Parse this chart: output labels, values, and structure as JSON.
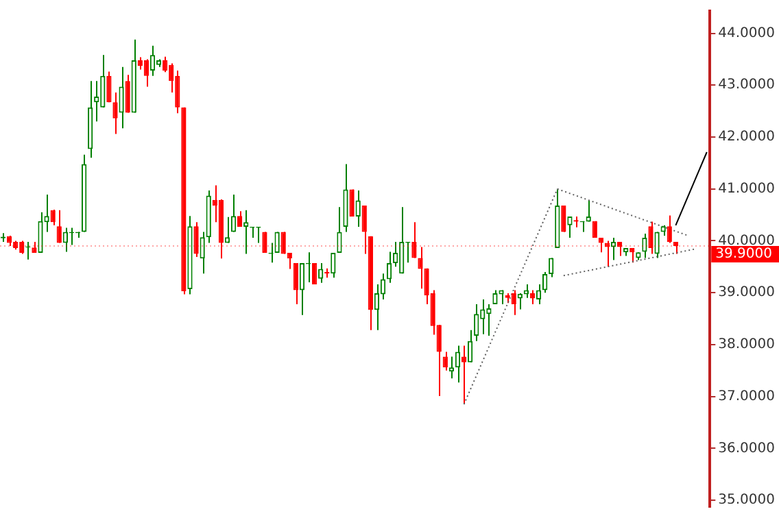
{
  "chart_data": {
    "type": "candlestick",
    "categories": [
      null,
      null,
      null,
      null,
      null,
      null,
      null,
      null,
      null,
      null,
      null,
      null,
      null,
      null,
      null,
      null,
      null,
      null,
      null,
      null,
      null,
      null,
      null,
      null,
      null,
      null,
      null,
      null,
      null,
      null,
      null,
      null,
      null,
      null,
      null,
      null,
      null,
      null,
      null,
      null,
      null,
      null,
      null,
      null,
      null,
      null,
      null,
      null,
      null,
      null,
      null,
      null,
      null,
      null,
      null,
      null,
      null,
      null,
      null,
      null,
      null,
      null,
      null,
      null,
      null,
      null,
      null,
      null,
      null,
      null,
      null,
      null,
      null,
      null,
      null,
      null,
      null,
      null,
      null,
      null,
      null,
      null,
      null,
      null,
      null,
      null,
      null,
      null,
      null,
      null,
      null,
      null,
      null,
      null,
      null,
      null,
      null,
      null,
      null,
      null,
      null,
      null,
      null,
      null,
      null,
      null,
      null,
      null,
      null,
      null,
      null,
      null,
      null,
      null
    ],
    "ohlc": [
      [
        40.05,
        40.15,
        39.98,
        40.08
      ],
      [
        40.09,
        40.1,
        39.9,
        39.96
      ],
      [
        39.98,
        40.0,
        39.83,
        39.86
      ],
      [
        39.98,
        40.0,
        39.75,
        39.77
      ],
      [
        39.87,
        39.98,
        39.64,
        39.89
      ],
      [
        39.87,
        39.98,
        39.77,
        39.77
      ],
      [
        39.77,
        40.55,
        39.77,
        40.38
      ],
      [
        40.36,
        40.89,
        40.17,
        40.48
      ],
      [
        40.59,
        40.6,
        40.3,
        40.36
      ],
      [
        40.28,
        40.59,
        39.96,
        39.96
      ],
      [
        39.96,
        40.25,
        39.79,
        40.17
      ],
      [
        40.15,
        40.25,
        39.92,
        40.17
      ],
      [
        40.15,
        40.17,
        40.06,
        40.17
      ],
      [
        40.17,
        41.66,
        40.17,
        41.48
      ],
      [
        41.77,
        43.08,
        41.6,
        42.57
      ],
      [
        42.67,
        43.08,
        42.3,
        42.78
      ],
      [
        42.57,
        43.58,
        42.57,
        43.18
      ],
      [
        43.18,
        43.26,
        42.67,
        42.67
      ],
      [
        42.67,
        42.86,
        42.06,
        42.36
      ],
      [
        42.47,
        43.35,
        42.17,
        42.97
      ],
      [
        43.08,
        43.2,
        42.47,
        42.47
      ],
      [
        42.47,
        43.88,
        42.47,
        43.48
      ],
      [
        43.48,
        43.54,
        43.3,
        43.37
      ],
      [
        43.48,
        43.5,
        42.97,
        43.18
      ],
      [
        43.28,
        43.76,
        43.18,
        43.58
      ],
      [
        43.39,
        43.5,
        43.35,
        43.48
      ],
      [
        43.48,
        43.55,
        43.25,
        43.28
      ],
      [
        43.39,
        43.42,
        42.86,
        43.08
      ],
      [
        43.18,
        43.28,
        42.46,
        42.57
      ],
      [
        42.57,
        42.57,
        38.97,
        39.03
      ],
      [
        39.07,
        40.48,
        38.97,
        40.28
      ],
      [
        40.28,
        40.36,
        39.69,
        39.75
      ],
      [
        39.66,
        40.17,
        39.37,
        40.07
      ],
      [
        40.07,
        40.97,
        39.96,
        40.87
      ],
      [
        40.79,
        41.07,
        40.36,
        40.68
      ],
      [
        40.79,
        40.8,
        39.66,
        39.96
      ],
      [
        39.96,
        40.46,
        39.96,
        40.07
      ],
      [
        40.17,
        40.89,
        40.17,
        40.48
      ],
      [
        40.48,
        40.57,
        40.27,
        40.27
      ],
      [
        40.27,
        40.59,
        39.75,
        40.36
      ],
      [
        40.25,
        40.27,
        40.06,
        40.27
      ],
      [
        40.25,
        40.27,
        39.96,
        40.27
      ],
      [
        40.17,
        40.17,
        39.77,
        39.77
      ],
      [
        39.75,
        39.96,
        39.58,
        39.77
      ],
      [
        39.77,
        40.17,
        39.77,
        40.17
      ],
      [
        40.17,
        40.17,
        39.75,
        39.75
      ],
      [
        39.77,
        39.77,
        39.46,
        39.66
      ],
      [
        39.57,
        39.57,
        38.78,
        39.05
      ],
      [
        39.05,
        39.57,
        38.57,
        39.57
      ],
      [
        39.55,
        39.78,
        39.2,
        39.57
      ],
      [
        39.57,
        39.57,
        39.16,
        39.16
      ],
      [
        39.27,
        39.57,
        39.19,
        39.46
      ],
      [
        39.4,
        39.47,
        39.29,
        39.37
      ],
      [
        39.37,
        39.77,
        39.29,
        39.77
      ],
      [
        39.77,
        40.65,
        39.77,
        40.17
      ],
      [
        40.27,
        41.48,
        40.17,
        40.99
      ],
      [
        40.99,
        40.99,
        40.47,
        40.47
      ],
      [
        40.47,
        40.97,
        40.27,
        40.78
      ],
      [
        40.68,
        40.68,
        39.75,
        40.17
      ],
      [
        40.09,
        40.09,
        38.28,
        38.67
      ],
      [
        38.67,
        39.16,
        38.28,
        38.99
      ],
      [
        38.97,
        39.37,
        38.87,
        39.26
      ],
      [
        39.26,
        39.79,
        39.19,
        39.57
      ],
      [
        39.57,
        39.98,
        39.5,
        39.77
      ],
      [
        39.37,
        40.65,
        39.37,
        39.98
      ],
      [
        39.96,
        39.98,
        39.58,
        39.98
      ],
      [
        39.98,
        40.36,
        39.67,
        39.67
      ],
      [
        39.67,
        39.88,
        39.08,
        39.46
      ],
      [
        39.47,
        39.47,
        38.78,
        38.95
      ],
      [
        38.99,
        39.05,
        38.19,
        38.36
      ],
      [
        38.38,
        38.38,
        37.01,
        37.86
      ],
      [
        37.77,
        37.86,
        37.5,
        37.56
      ],
      [
        37.48,
        37.77,
        37.35,
        37.56
      ],
      [
        37.56,
        37.98,
        37.27,
        37.86
      ],
      [
        37.77,
        37.98,
        36.85,
        37.66
      ],
      [
        37.66,
        38.28,
        37.66,
        38.07
      ],
      [
        38.17,
        38.78,
        38.07,
        38.59
      ],
      [
        38.49,
        38.87,
        38.2,
        38.68
      ],
      [
        38.59,
        38.78,
        38.17,
        38.7
      ],
      [
        38.78,
        39.05,
        38.78,
        38.99
      ],
      [
        38.97,
        39.05,
        38.78,
        39.05
      ],
      [
        38.95,
        38.99,
        38.8,
        38.9
      ],
      [
        38.99,
        39.05,
        38.57,
        38.78
      ],
      [
        38.89,
        38.99,
        38.68,
        38.98
      ],
      [
        38.97,
        39.16,
        38.9,
        39.05
      ],
      [
        38.99,
        39.05,
        38.78,
        38.89
      ],
      [
        38.87,
        39.16,
        38.78,
        39.05
      ],
      [
        39.05,
        39.4,
        39.0,
        39.36
      ],
      [
        39.36,
        39.67,
        39.3,
        39.67
      ],
      [
        39.86,
        40.99,
        39.86,
        40.68
      ],
      [
        40.68,
        40.68,
        40.17,
        40.17
      ],
      [
        40.3,
        40.47,
        40.06,
        40.47
      ],
      [
        40.4,
        40.47,
        40.26,
        40.37
      ],
      [
        40.36,
        40.38,
        40.17,
        40.38
      ],
      [
        40.37,
        40.78,
        40.37,
        40.47
      ],
      [
        40.38,
        40.38,
        40.06,
        40.06
      ],
      [
        40.06,
        40.06,
        39.78,
        39.96
      ],
      [
        39.96,
        40.0,
        39.5,
        39.88
      ],
      [
        39.88,
        40.06,
        39.63,
        39.98
      ],
      [
        39.98,
        39.98,
        39.71,
        39.88
      ],
      [
        39.78,
        39.86,
        39.71,
        39.86
      ],
      [
        39.86,
        39.86,
        39.58,
        39.78
      ],
      [
        39.67,
        39.78,
        39.63,
        39.78
      ],
      [
        39.79,
        40.14,
        39.67,
        40.06
      ],
      [
        40.28,
        40.37,
        39.75,
        39.86
      ],
      [
        39.75,
        40.17,
        39.67,
        40.17
      ],
      [
        40.17,
        40.3,
        40.1,
        40.28
      ],
      [
        40.28,
        40.49,
        39.96,
        39.98
      ],
      [
        39.98,
        39.98,
        39.75,
        39.9
      ],
      null,
      null,
      null,
      null,
      null
    ],
    "colors": [
      "#008000",
      "#ff0000",
      "#ff0000",
      "#ff0000",
      "#008000",
      "#ff0000",
      "#008000",
      "#008000",
      "#ff0000",
      "#ff0000",
      "#008000",
      "#008000",
      "#008000",
      "#008000",
      "#008000",
      "#008000",
      "#008000",
      "#ff0000",
      "#ff0000",
      "#008000",
      "#ff0000",
      "#008000",
      "#ff0000",
      "#ff0000",
      "#008000",
      "#008000",
      "#ff0000",
      "#ff0000",
      "#ff0000",
      "#ff0000",
      "#008000",
      "#ff0000",
      "#008000",
      "#008000",
      "#ff0000",
      "#ff0000",
      "#008000",
      "#008000",
      "#ff0000",
      "#008000",
      "#008000",
      "#008000",
      "#ff0000",
      "#008000",
      "#008000",
      "#ff0000",
      "#ff0000",
      "#ff0000",
      "#008000",
      "#008000",
      "#ff0000",
      "#008000",
      "#ff0000",
      "#008000",
      "#008000",
      "#008000",
      "#ff0000",
      "#008000",
      "#ff0000",
      "#ff0000",
      "#008000",
      "#008000",
      "#008000",
      "#008000",
      "#008000",
      "#008000",
      "#ff0000",
      "#ff0000",
      "#ff0000",
      "#ff0000",
      "#ff0000",
      "#ff0000",
      "#008000",
      "#008000",
      "#ff0000",
      "#008000",
      "#008000",
      "#008000",
      "#008000",
      "#008000",
      "#008000",
      "#ff0000",
      "#ff0000",
      "#008000",
      "#008000",
      "#ff0000",
      "#008000",
      "#008000",
      "#008000",
      "#008000",
      "#ff0000",
      "#008000",
      "#ff0000",
      "#008000",
      "#008000",
      "#ff0000",
      "#ff0000",
      "#ff0000",
      "#008000",
      "#ff0000",
      "#008000",
      "#ff0000",
      "#008000",
      "#008000",
      "#ff0000",
      "#008000",
      "#008000",
      "#ff0000",
      "#ff0000",
      null,
      null,
      null,
      null,
      null
    ],
    "series": [
      {
        "type": "line",
        "color": "#606060",
        "line_style": "dotted",
        "values": [
          null,
          null,
          null,
          null,
          null,
          null,
          null,
          null,
          null,
          null,
          null,
          null,
          null,
          null,
          null,
          null,
          null,
          null,
          null,
          null,
          null,
          null,
          null,
          null,
          null,
          null,
          null,
          null,
          null,
          null,
          null,
          null,
          null,
          null,
          null,
          null,
          null,
          null,
          null,
          null,
          null,
          null,
          null,
          null,
          null,
          null,
          null,
          null,
          null,
          null,
          null,
          null,
          null,
          null,
          null,
          null,
          null,
          null,
          null,
          null,
          null,
          null,
          null,
          null,
          null,
          null,
          null,
          null,
          null,
          null,
          null,
          null,
          null,
          null,
          36.85,
          null,
          null,
          null,
          null,
          null,
          null,
          null,
          null,
          null,
          null,
          null,
          null,
          null,
          null,
          41.0,
          null,
          null,
          null,
          null,
          null,
          null,
          null,
          null,
          null,
          null,
          null,
          null,
          null,
          null,
          null,
          null,
          null,
          null,
          null,
          null,
          null,
          null,
          null,
          null
        ]
      },
      {
        "type": "line",
        "color": "#606060",
        "line_style": "dotted",
        "values": [
          null,
          null,
          null,
          null,
          null,
          null,
          null,
          null,
          null,
          null,
          null,
          null,
          null,
          null,
          null,
          null,
          null,
          null,
          null,
          null,
          null,
          null,
          null,
          null,
          null,
          null,
          null,
          null,
          null,
          null,
          null,
          null,
          null,
          null,
          null,
          null,
          null,
          null,
          null,
          null,
          null,
          null,
          null,
          null,
          null,
          null,
          null,
          null,
          null,
          null,
          null,
          null,
          null,
          null,
          null,
          null,
          null,
          null,
          null,
          null,
          null,
          null,
          null,
          null,
          null,
          null,
          null,
          null,
          null,
          null,
          null,
          null,
          null,
          null,
          null,
          null,
          null,
          null,
          null,
          null,
          null,
          null,
          null,
          null,
          null,
          null,
          null,
          null,
          null,
          41.0,
          null,
          null,
          null,
          null,
          null,
          null,
          null,
          null,
          null,
          null,
          null,
          null,
          null,
          null,
          null,
          null,
          null,
          null,
          null,
          null,
          40.1,
          null,
          null,
          null
        ]
      },
      {
        "type": "line",
        "color": "#606060",
        "line_style": "dotted",
        "values": [
          null,
          null,
          null,
          null,
          null,
          null,
          null,
          null,
          null,
          null,
          null,
          null,
          null,
          null,
          null,
          null,
          null,
          null,
          null,
          null,
          null,
          null,
          null,
          null,
          null,
          null,
          null,
          null,
          null,
          null,
          null,
          null,
          null,
          null,
          null,
          null,
          null,
          null,
          null,
          null,
          null,
          null,
          null,
          null,
          null,
          null,
          null,
          null,
          null,
          null,
          null,
          null,
          null,
          null,
          null,
          null,
          null,
          null,
          null,
          null,
          null,
          null,
          null,
          null,
          null,
          null,
          null,
          null,
          null,
          null,
          null,
          null,
          null,
          null,
          null,
          null,
          null,
          null,
          null,
          null,
          null,
          null,
          null,
          null,
          null,
          null,
          null,
          null,
          null,
          null,
          39.33,
          null,
          null,
          null,
          null,
          null,
          null,
          null,
          null,
          null,
          null,
          null,
          null,
          null,
          null,
          null,
          null,
          null,
          null,
          null,
          null,
          39.84,
          null,
          null
        ]
      },
      {
        "type": "line",
        "color": "#000000",
        "line_style": "solid",
        "values": [
          null,
          null,
          null,
          null,
          null,
          null,
          null,
          null,
          null,
          null,
          null,
          null,
          null,
          null,
          null,
          null,
          null,
          null,
          null,
          null,
          null,
          null,
          null,
          null,
          null,
          null,
          null,
          null,
          null,
          null,
          null,
          null,
          null,
          null,
          null,
          null,
          null,
          null,
          null,
          null,
          null,
          null,
          null,
          null,
          null,
          null,
          null,
          null,
          null,
          null,
          null,
          null,
          null,
          null,
          null,
          null,
          null,
          null,
          null,
          null,
          null,
          null,
          null,
          null,
          null,
          null,
          null,
          null,
          null,
          null,
          null,
          null,
          null,
          null,
          null,
          null,
          null,
          null,
          null,
          null,
          null,
          null,
          null,
          null,
          null,
          null,
          null,
          null,
          null,
          null,
          null,
          null,
          null,
          null,
          null,
          null,
          null,
          null,
          null,
          null,
          null,
          null,
          null,
          null,
          null,
          null,
          null,
          null,
          40.3,
          null,
          null,
          null,
          null,
          41.71
        ]
      }
    ],
    "ylim": [
      34.87,
      44.43
    ],
    "yticks": [
      {
        "value": 35,
        "label": "35.0000"
      },
      {
        "value": 36,
        "label": "36.0000"
      },
      {
        "value": 37,
        "label": "37.0000"
      },
      {
        "value": 38,
        "label": "38.0000"
      },
      {
        "value": 39,
        "label": "39.0000"
      },
      {
        "value": 40,
        "label": "40.0000"
      },
      {
        "value": 41,
        "label": "41.0000"
      },
      {
        "value": 42,
        "label": "42.0000"
      },
      {
        "value": 43,
        "label": "43.0000"
      },
      {
        "value": 44,
        "label": "44.0000"
      }
    ],
    "ref_lines": [
      {
        "axis": "y",
        "value": 39.9,
        "label": "39.9000",
        "color": "#ff0000"
      }
    ],
    "tick_labels": "y",
    "grid": false,
    "legend": false,
    "marker": "none"
  }
}
